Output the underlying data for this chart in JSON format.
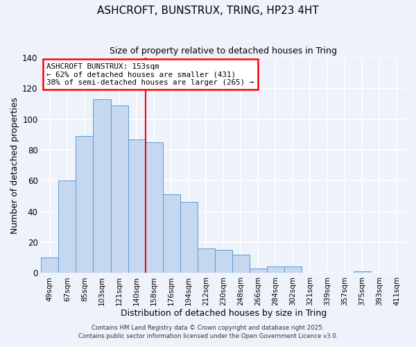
{
  "title": "ASHCROFT, BUNSTRUX, TRING, HP23 4HT",
  "subtitle": "Size of property relative to detached houses in Tring",
  "xlabel": "Distribution of detached houses by size in Tring",
  "ylabel": "Number of detached properties",
  "bar_color": "#c5d8f0",
  "bar_edge_color": "#5b9bd5",
  "background_color": "#eef2fa",
  "grid_color": "#ffffff",
  "categories": [
    "49sqm",
    "67sqm",
    "85sqm",
    "103sqm",
    "121sqm",
    "140sqm",
    "158sqm",
    "176sqm",
    "194sqm",
    "212sqm",
    "230sqm",
    "248sqm",
    "266sqm",
    "284sqm",
    "302sqm",
    "321sqm",
    "339sqm",
    "357sqm",
    "375sqm",
    "393sqm",
    "411sqm"
  ],
  "values": [
    10,
    60,
    89,
    113,
    109,
    87,
    85,
    51,
    46,
    16,
    15,
    12,
    3,
    4,
    4,
    0,
    0,
    0,
    1,
    0,
    0
  ],
  "ylim": [
    0,
    140
  ],
  "yticks": [
    0,
    20,
    40,
    60,
    80,
    100,
    120,
    140
  ],
  "annotation_line1": "ASHCROFT BUNSTRUX: 153sqm",
  "annotation_line2": "← 62% of detached houses are smaller (431)",
  "annotation_line3": "38% of semi-detached houses are larger (265) →",
  "footer1": "Contains HM Land Registry data © Crown copyright and database right 2025.",
  "footer2": "Contains public sector information licensed under the Open Government Licence v3.0."
}
